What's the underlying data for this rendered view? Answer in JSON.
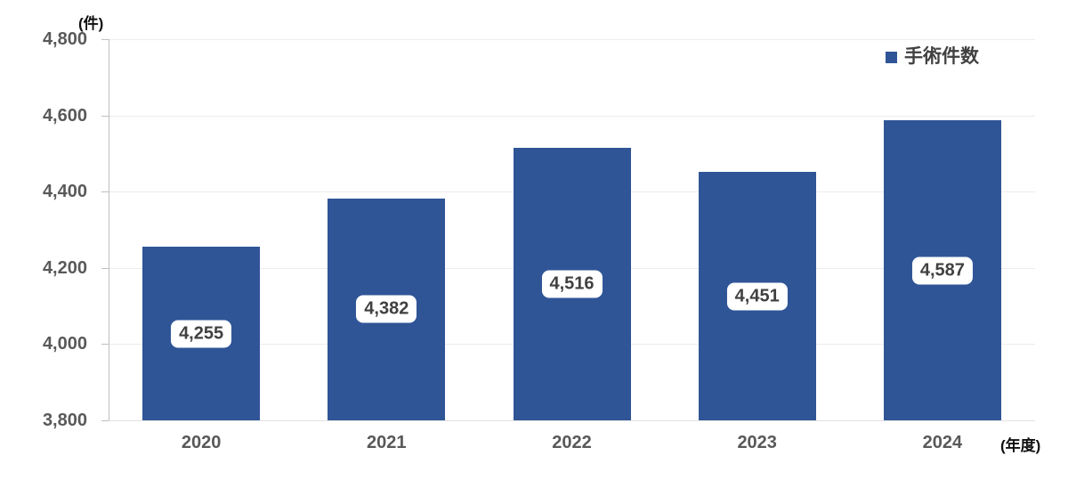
{
  "chart_data": {
    "type": "bar",
    "title": "",
    "categories": [
      "2020",
      "2021",
      "2022",
      "2023",
      "2024"
    ],
    "series": [
      {
        "name": "手術件数",
        "values": [
          4255,
          4382,
          4516,
          4451,
          4587
        ]
      }
    ],
    "data_labels": [
      "4,255",
      "4,382",
      "4,516",
      "4,451",
      "4,587"
    ],
    "xlabel": "(年度)",
    "ylabel": "(件)",
    "ylim": [
      3800,
      4800
    ],
    "yticks": [
      {
        "value": 3800,
        "label": "3,800"
      },
      {
        "value": 4000,
        "label": "4,000"
      },
      {
        "value": 4200,
        "label": "4,200"
      },
      {
        "value": 4400,
        "label": "4,400"
      },
      {
        "value": 4600,
        "label": "4,600"
      },
      {
        "value": 4800,
        "label": "4,800"
      }
    ],
    "grid": true,
    "legend": {
      "label": "手術件数",
      "position": "top-right"
    },
    "colors": {
      "bar": "#2F5597",
      "gridline": "#ECECEC",
      "axis_line": "#BFBFBF",
      "axis_soft": "#E2E2E2",
      "tick_label": "#595959",
      "data_label_text": "#404040",
      "unit_label_text": "#111111",
      "legend_text": "#404040",
      "background": "#FFFFFF"
    }
  }
}
